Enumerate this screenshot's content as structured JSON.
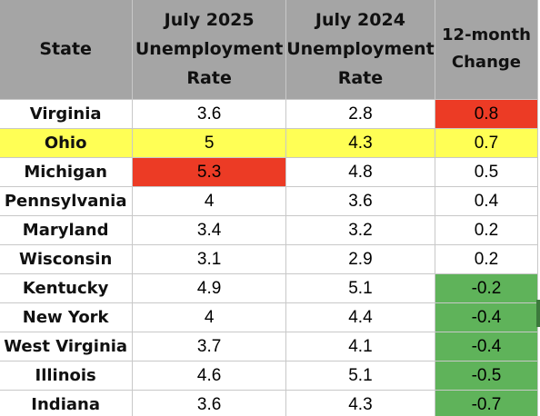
{
  "colors": {
    "header_bg": "#a5a5a5",
    "highlight_row": "#ffff55",
    "cell_red": "#ec3b25",
    "cell_green": "#5fb35a",
    "gridline": "#c8c8c8"
  },
  "table": {
    "headers": {
      "state": [
        "State"
      ],
      "jul2025": [
        "July 2025",
        "Unemployment",
        "Rate"
      ],
      "jul2024": [
        "July 2024",
        "Unemployment",
        "Rate"
      ],
      "change": [
        "12-month",
        "Change"
      ]
    },
    "rows": [
      {
        "state": "Virginia",
        "jul2025": "3.6",
        "jul2024": "2.8",
        "change": "0.8",
        "highlight": "none",
        "cell_fill": {
          "change": "red"
        }
      },
      {
        "state": "Ohio",
        "jul2025": "5",
        "jul2024": "4.3",
        "change": "0.7",
        "highlight": "yellow",
        "cell_fill": {}
      },
      {
        "state": "Michigan",
        "jul2025": "5.3",
        "jul2024": "4.8",
        "change": "0.5",
        "highlight": "none",
        "cell_fill": {
          "jul2025": "red"
        }
      },
      {
        "state": "Pennsylvania",
        "jul2025": "4",
        "jul2024": "3.6",
        "change": "0.4",
        "highlight": "none",
        "cell_fill": {}
      },
      {
        "state": "Maryland",
        "jul2025": "3.4",
        "jul2024": "3.2",
        "change": "0.2",
        "highlight": "none",
        "cell_fill": {}
      },
      {
        "state": "Wisconsin",
        "jul2025": "3.1",
        "jul2024": "2.9",
        "change": "0.2",
        "highlight": "none",
        "cell_fill": {}
      },
      {
        "state": "Kentucky",
        "jul2025": "4.9",
        "jul2024": "5.1",
        "change": "-0.2",
        "highlight": "none",
        "cell_fill": {
          "change": "green"
        }
      },
      {
        "state": "New York",
        "jul2025": "4",
        "jul2024": "4.4",
        "change": "-0.4",
        "highlight": "none",
        "cell_fill": {
          "change": "green"
        }
      },
      {
        "state": "West Virginia",
        "jul2025": "3.7",
        "jul2024": "4.1",
        "change": "-0.4",
        "highlight": "none",
        "cell_fill": {
          "change": "green"
        }
      },
      {
        "state": "Illinois",
        "jul2025": "4.6",
        "jul2024": "5.1",
        "change": "-0.5",
        "highlight": "none",
        "cell_fill": {
          "change": "green"
        }
      },
      {
        "state": "Indiana",
        "jul2025": "3.6",
        "jul2024": "4.3",
        "change": "-0.7",
        "highlight": "none",
        "cell_fill": {
          "change": "green"
        }
      }
    ]
  }
}
